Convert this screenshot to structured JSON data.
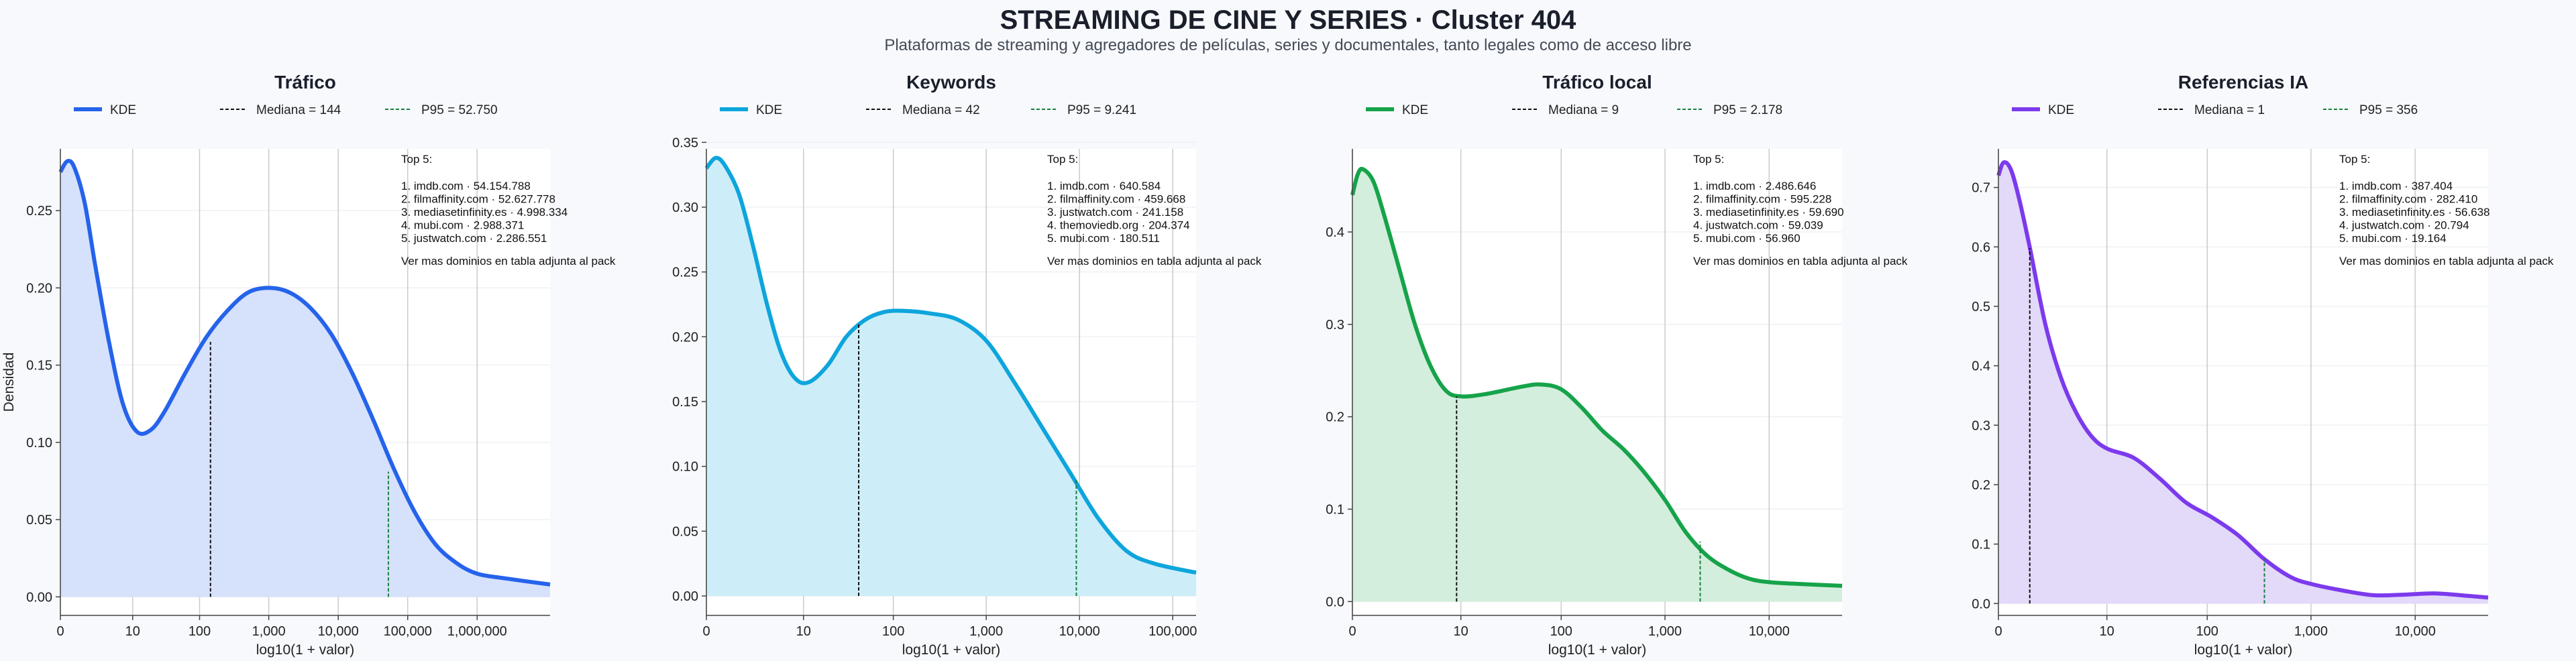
{
  "header": {
    "title": "STREAMING DE CINE Y SERIES · Cluster 404",
    "subtitle": "Plataformas de streaming y agregadores de películas, series y documentales, tanto legales como de acceso libre"
  },
  "legend_labels": {
    "kde": "KDE"
  },
  "info": {
    "top_label": "Top 5:",
    "footer": "Ver mas dominios en tabla adjunta al pack"
  },
  "chart_data": [
    {
      "type": "area",
      "title": "Tráfico",
      "color": "#2563eb",
      "fill": "#d6e1fb",
      "xlabel": "log10(1 + valor)",
      "ylabel": "Densidad",
      "xlim": [
        0,
        7.05
      ],
      "ylim": [
        -0.012,
        0.29
      ],
      "xticks": [
        {
          "v": 0,
          "label": "0"
        },
        {
          "v": 1.041,
          "label": "10"
        },
        {
          "v": 2.004,
          "label": "100"
        },
        {
          "v": 3,
          "label": "1,000"
        },
        {
          "v": 4,
          "label": "10,000"
        },
        {
          "v": 5,
          "label": "100,000"
        },
        {
          "v": 6,
          "label": "1,000,000"
        }
      ],
      "yticks": [
        0,
        0.05,
        0.1,
        0.15,
        0.2,
        0.25
      ],
      "ytick_labels": [
        "0.00",
        "0.05",
        "0.10",
        "0.15",
        "0.20",
        "0.25"
      ],
      "kde": {
        "x": [
          0,
          0.1,
          0.2,
          0.35,
          0.5,
          0.7,
          0.9,
          1.1,
          1.3,
          1.5,
          1.8,
          2.1,
          2.4,
          2.7,
          3.0,
          3.3,
          3.6,
          3.9,
          4.2,
          4.5,
          4.8,
          5.1,
          5.4,
          5.7,
          6.0,
          6.4,
          7.05
        ],
        "y": [
          0.275,
          0.282,
          0.278,
          0.255,
          0.215,
          0.165,
          0.125,
          0.107,
          0.108,
          0.12,
          0.145,
          0.168,
          0.185,
          0.197,
          0.2,
          0.197,
          0.187,
          0.17,
          0.145,
          0.115,
          0.083,
          0.055,
          0.034,
          0.022,
          0.015,
          0.012,
          0.008
        ]
      },
      "median": {
        "value": 144,
        "x": 2.161,
        "y": 0.165,
        "label": "Mediana = 144"
      },
      "p95": {
        "value": 52750,
        "x": 4.722,
        "y": 0.081,
        "label": "P95 = 52.750"
      },
      "top5": [
        "1. imdb.com · 54.154.788",
        "2. filmaffinity.com · 52.627.778",
        "3. mediasetinfinity.es · 4.998.334",
        "4. mubi.com · 2.988.371",
        "5. justwatch.com · 2.286.551"
      ]
    },
    {
      "type": "area",
      "title": "Keywords",
      "color": "#0ea5dc",
      "fill": "#cdeef9",
      "xlabel": "log10(1 + valor)",
      "ylabel": "",
      "xlim": [
        0,
        5.25
      ],
      "ylim": [
        -0.015,
        0.345
      ],
      "xticks": [
        {
          "v": 0,
          "label": "0"
        },
        {
          "v": 1.041,
          "label": "10"
        },
        {
          "v": 2.004,
          "label": "100"
        },
        {
          "v": 3,
          "label": "1,000"
        },
        {
          "v": 4,
          "label": "10,000"
        },
        {
          "v": 5,
          "label": "100,000"
        }
      ],
      "yticks": [
        0,
        0.05,
        0.1,
        0.15,
        0.2,
        0.25,
        0.3,
        0.35
      ],
      "ytick_labels": [
        "0.00",
        "0.05",
        "0.10",
        "0.15",
        "0.20",
        "0.25",
        "0.30",
        "0.35"
      ],
      "kde": {
        "x": [
          0,
          0.1,
          0.2,
          0.35,
          0.5,
          0.65,
          0.8,
          0.95,
          1.1,
          1.3,
          1.5,
          1.7,
          1.9,
          2.1,
          2.4,
          2.7,
          3.0,
          3.3,
          3.6,
          3.9,
          4.2,
          4.5,
          4.8,
          5.25
        ],
        "y": [
          0.33,
          0.338,
          0.332,
          0.31,
          0.27,
          0.225,
          0.188,
          0.168,
          0.165,
          0.178,
          0.2,
          0.213,
          0.219,
          0.22,
          0.218,
          0.213,
          0.197,
          0.165,
          0.13,
          0.095,
          0.06,
          0.035,
          0.025,
          0.018
        ]
      },
      "median": {
        "value": 42,
        "x": 1.633,
        "y": 0.21,
        "label": "Mediana = 42"
      },
      "p95": {
        "value": 9241,
        "x": 3.966,
        "y": 0.09,
        "label": "P95 = 9.241"
      },
      "top5": [
        "1. imdb.com · 640.584",
        "2. filmaffinity.com · 459.668",
        "3. justwatch.com · 241.158",
        "4. themoviedb.org · 204.374",
        "5. mubi.com · 180.511"
      ]
    },
    {
      "type": "area",
      "title": "Tráfico local",
      "color": "#16a34a",
      "fill": "#d3eedc",
      "xlabel": "log10(1 + valor)",
      "ylabel": "",
      "xlim": [
        0,
        4.7
      ],
      "ylim": [
        -0.015,
        0.49
      ],
      "xticks": [
        {
          "v": 0,
          "label": "0"
        },
        {
          "v": 1.041,
          "label": "10"
        },
        {
          "v": 2.004,
          "label": "100"
        },
        {
          "v": 3,
          "label": "1,000"
        },
        {
          "v": 4,
          "label": "10,000"
        }
      ],
      "yticks": [
        0,
        0.1,
        0.2,
        0.3,
        0.4
      ],
      "ytick_labels": [
        "0.0",
        "0.1",
        "0.2",
        "0.3",
        "0.4"
      ],
      "kde": {
        "x": [
          0,
          0.05,
          0.1,
          0.2,
          0.3,
          0.45,
          0.6,
          0.75,
          0.9,
          1.05,
          1.3,
          1.6,
          1.8,
          2.0,
          2.2,
          2.4,
          2.6,
          2.8,
          3.0,
          3.2,
          3.4,
          3.6,
          3.8,
          4.0,
          4.3,
          4.7
        ],
        "y": [
          0.44,
          0.462,
          0.468,
          0.455,
          0.42,
          0.36,
          0.3,
          0.255,
          0.228,
          0.222,
          0.225,
          0.232,
          0.235,
          0.23,
          0.21,
          0.185,
          0.165,
          0.14,
          0.11,
          0.075,
          0.05,
          0.035,
          0.025,
          0.021,
          0.019,
          0.017
        ]
      },
      "median": {
        "value": 9,
        "x": 1.0,
        "y": 0.222,
        "label": "Mediana = 9"
      },
      "p95": {
        "value": 2178,
        "x": 3.338,
        "y": 0.065,
        "label": "P95 = 2.178"
      },
      "top5": [
        "1. imdb.com · 2.486.646",
        "2. filmaffinity.com · 595.228",
        "3. mediasetinfinity.es · 59.690",
        "4. justwatch.com · 59.039",
        "5. mubi.com · 56.960"
      ]
    },
    {
      "type": "area",
      "title": "Referencias IA",
      "color": "#7c3aed",
      "fill": "#e3d9f9",
      "xlabel": "log10(1 + valor)",
      "ylabel": "",
      "xlim": [
        0,
        4.7
      ],
      "ylim": [
        -0.02,
        0.765
      ],
      "xticks": [
        {
          "v": 0,
          "label": "0"
        },
        {
          "v": 1.041,
          "label": "10"
        },
        {
          "v": 2.004,
          "label": "100"
        },
        {
          "v": 3,
          "label": "1,000"
        },
        {
          "v": 4,
          "label": "10,000"
        }
      ],
      "yticks": [
        0,
        0.1,
        0.2,
        0.3,
        0.4,
        0.5,
        0.6,
        0.7
      ],
      "ytick_labels": [
        "0.0",
        "0.1",
        "0.2",
        "0.3",
        "0.4",
        "0.5",
        "0.6",
        "0.7"
      ],
      "kde": {
        "x": [
          0,
          0.05,
          0.12,
          0.2,
          0.3,
          0.45,
          0.6,
          0.75,
          0.9,
          1.05,
          1.3,
          1.55,
          1.8,
          2.05,
          2.3,
          2.55,
          2.8,
          3.0,
          3.3,
          3.6,
          3.9,
          4.2,
          4.5,
          4.7
        ],
        "y": [
          0.72,
          0.742,
          0.73,
          0.68,
          0.6,
          0.47,
          0.38,
          0.32,
          0.28,
          0.26,
          0.245,
          0.21,
          0.17,
          0.145,
          0.115,
          0.075,
          0.045,
          0.033,
          0.022,
          0.014,
          0.015,
          0.017,
          0.013,
          0.01
        ]
      },
      "median": {
        "value": 1,
        "x": 0.301,
        "y": 0.598,
        "label": "Mediana = 1"
      },
      "p95": {
        "value": 356,
        "x": 2.553,
        "y": 0.075,
        "label": "P95 = 356"
      },
      "top5": [
        "1. imdb.com · 387.404",
        "2. filmaffinity.com · 282.410",
        "3. mediasetinfinity.es · 56.638",
        "4. justwatch.com · 20.794",
        "5. mubi.com · 19.164"
      ]
    }
  ]
}
